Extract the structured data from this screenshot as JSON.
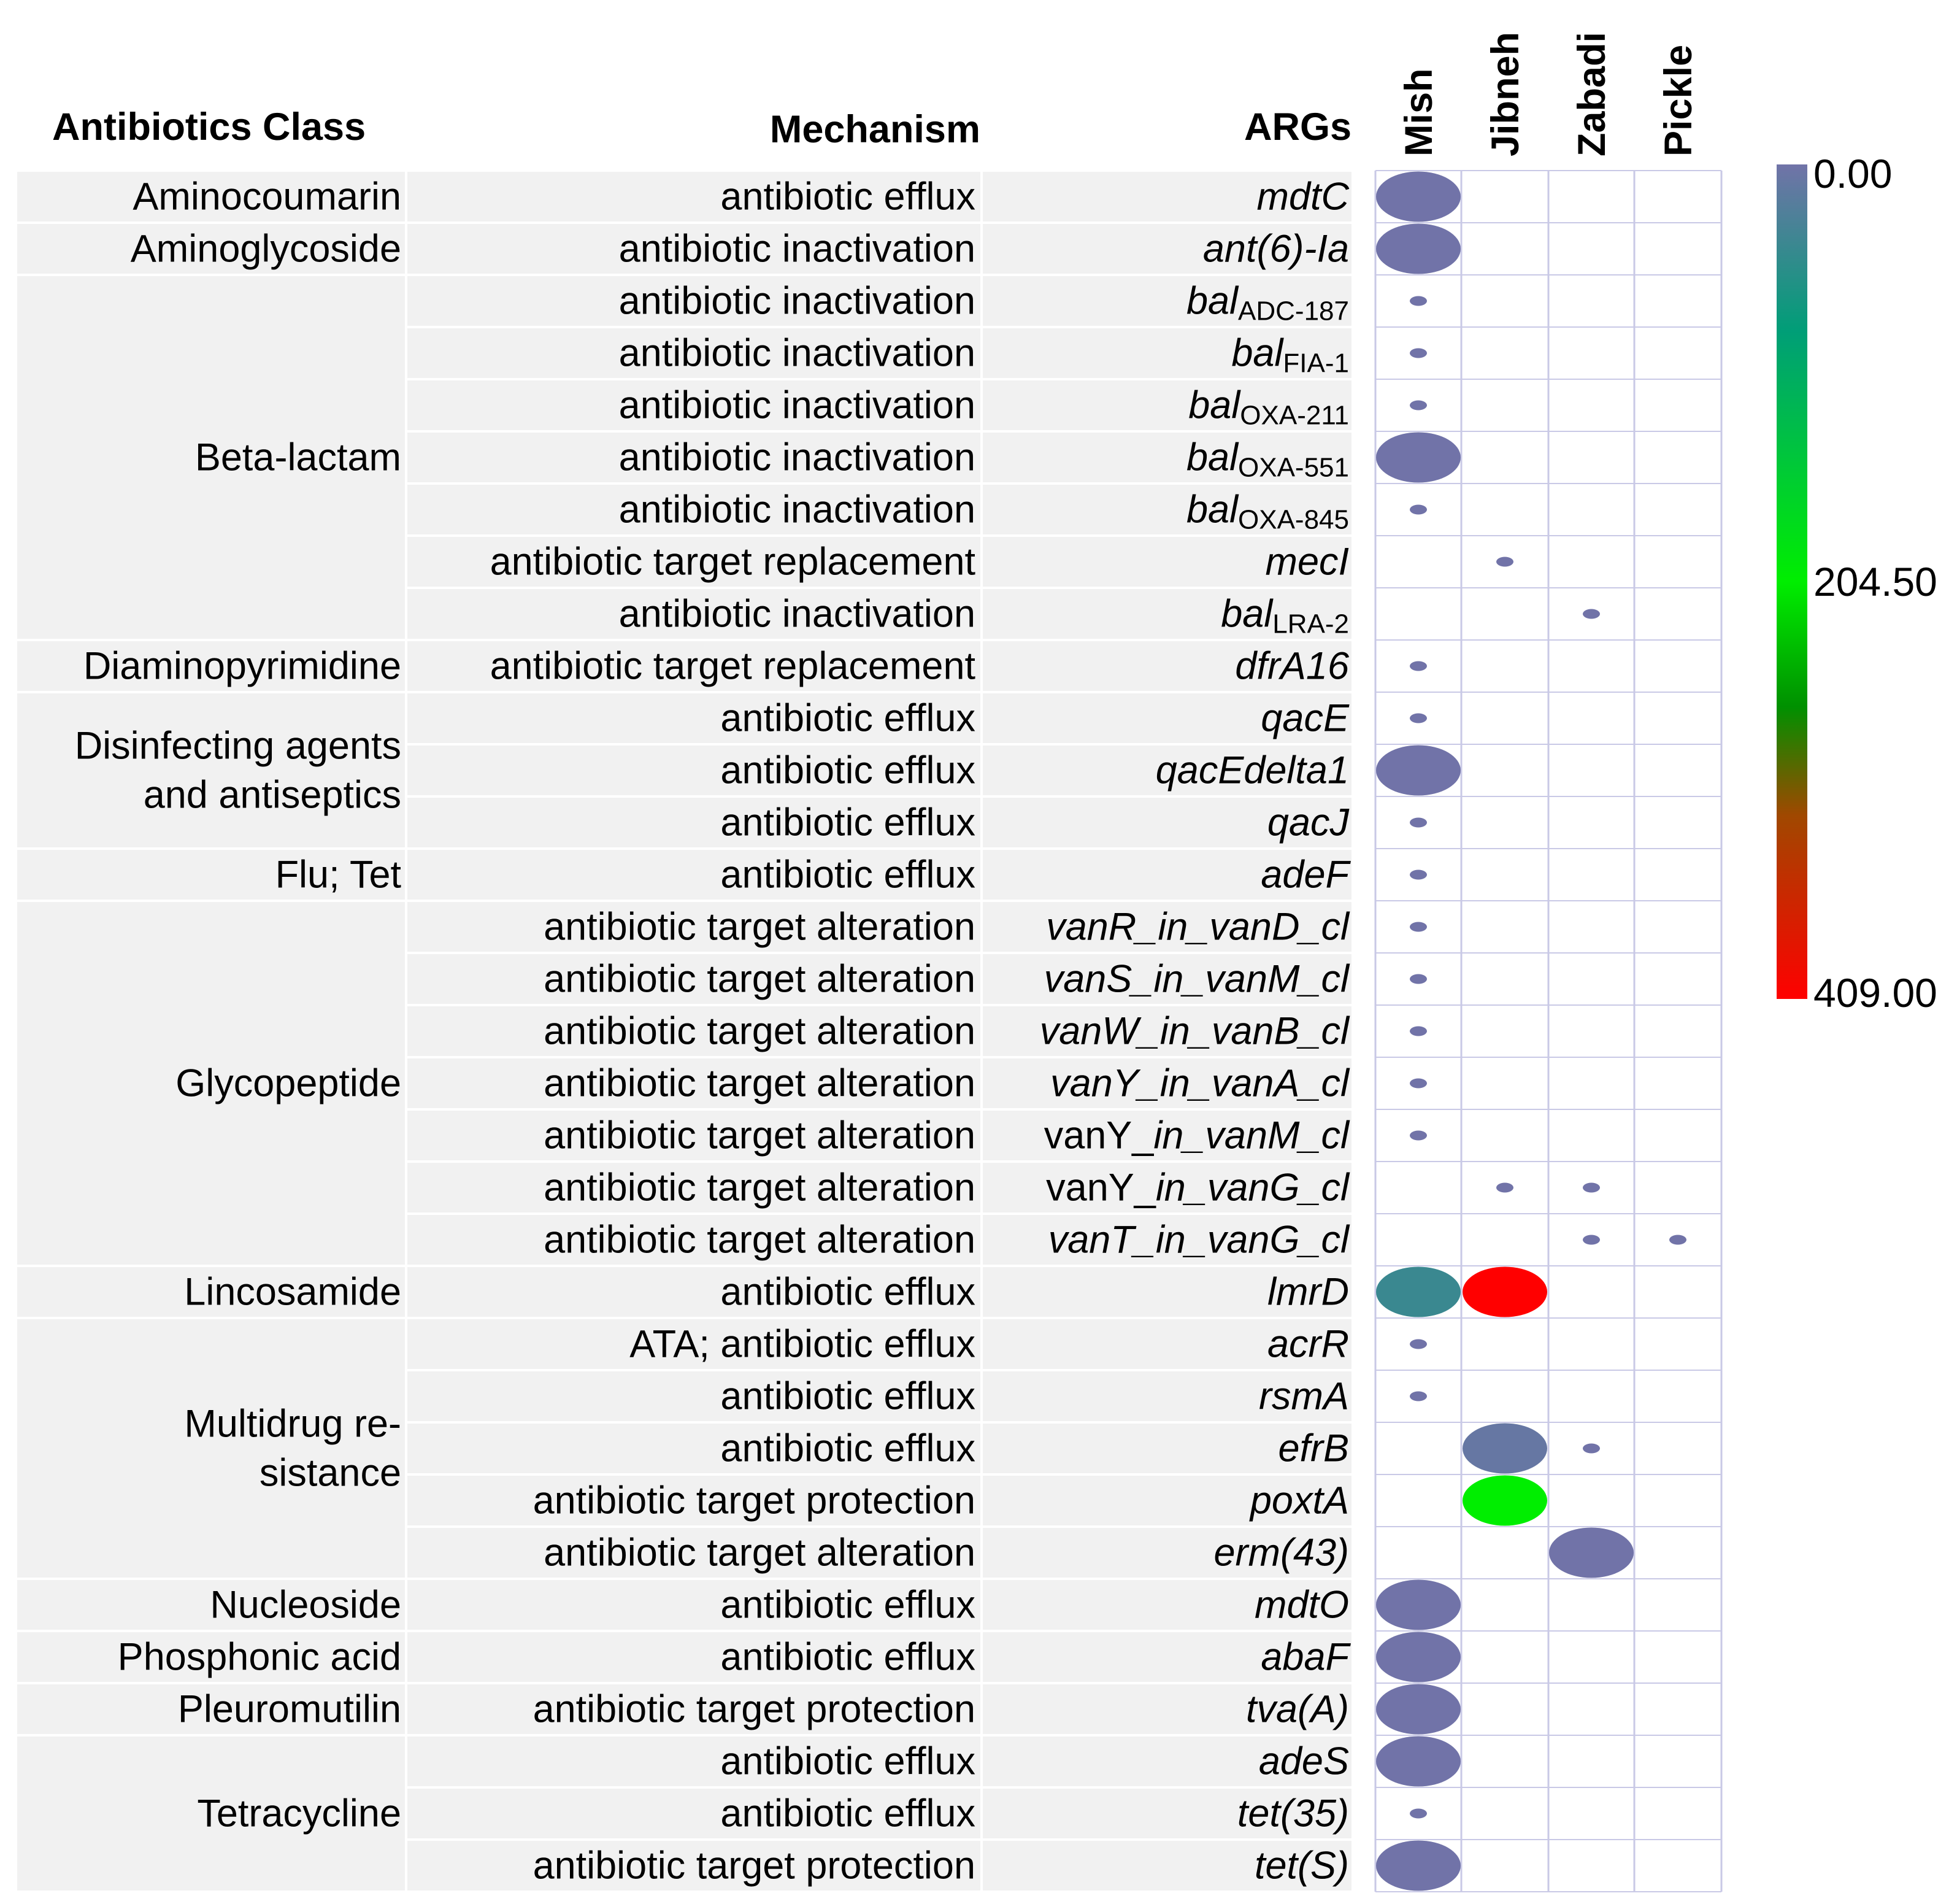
{
  "chart_data": {
    "type": "bubble-heatmap",
    "headers": {
      "class": "Antibiotics Class",
      "mechanism": "Mechanism",
      "args": "ARGs"
    },
    "samples": [
      "Mish",
      "Jibneh",
      "Zabadi",
      "Pickle"
    ],
    "class_groups": [
      {
        "label": [
          "Aminocoumarin"
        ],
        "start": 0,
        "count": 1
      },
      {
        "label": [
          "Aminoglycoside"
        ],
        "start": 1,
        "count": 1
      },
      {
        "label": [
          "Beta-lactam"
        ],
        "start": 2,
        "count": 7
      },
      {
        "label": [
          "Diaminopyrimidine"
        ],
        "start": 9,
        "count": 1
      },
      {
        "label": [
          "Disinfecting agents",
          "and antiseptics"
        ],
        "start": 10,
        "count": 3
      },
      {
        "label": [
          "Flu; Tet"
        ],
        "start": 13,
        "count": 1
      },
      {
        "label": [
          "Glycopeptide"
        ],
        "start": 14,
        "count": 7
      },
      {
        "label": [
          "Lincosamide"
        ],
        "start": 21,
        "count": 1
      },
      {
        "label": [
          "Multidrug re-",
          "sistance"
        ],
        "start": 22,
        "count": 5
      },
      {
        "label": [
          "Nucleoside"
        ],
        "start": 27,
        "count": 1
      },
      {
        "label": [
          "Phosphonic acid"
        ],
        "start": 28,
        "count": 1
      },
      {
        "label": [
          "Pleuromutilin"
        ],
        "start": 29,
        "count": 1
      },
      {
        "label": [
          "Tetracycline"
        ],
        "start": 30,
        "count": 3
      }
    ],
    "rows": [
      {
        "mechanism": "antibiotic efflux",
        "arg": [
          {
            "t": "mdtC",
            "i": true
          }
        ],
        "cells": [
          [
            0,
            1.0,
            0
          ]
        ]
      },
      {
        "mechanism": "antibiotic inactivation",
        "arg": [
          {
            "t": "ant(6)-Ia",
            "i": true
          }
        ],
        "cells": [
          [
            0,
            1.0,
            0
          ]
        ]
      },
      {
        "mechanism": "antibiotic inactivation",
        "arg": [
          {
            "t": "bal",
            "i": true
          },
          {
            "t": "ADC-187",
            "sub": true
          }
        ],
        "cells": [
          [
            0,
            0.2,
            0
          ]
        ]
      },
      {
        "mechanism": "antibiotic inactivation",
        "arg": [
          {
            "t": "bal",
            "i": true
          },
          {
            "t": "FIA-1",
            "sub": true
          }
        ],
        "cells": [
          [
            0,
            0.2,
            0
          ]
        ]
      },
      {
        "mechanism": "antibiotic inactivation",
        "arg": [
          {
            "t": "bal",
            "i": true
          },
          {
            "t": "OXA-211",
            "sub": true
          }
        ],
        "cells": [
          [
            0,
            0.2,
            0
          ]
        ]
      },
      {
        "mechanism": "antibiotic inactivation",
        "arg": [
          {
            "t": "bal",
            "i": true
          },
          {
            "t": "OXA-551",
            "sub": true
          }
        ],
        "cells": [
          [
            0,
            1.0,
            0
          ]
        ]
      },
      {
        "mechanism": "antibiotic inactivation",
        "arg": [
          {
            "t": "bal",
            "i": true
          },
          {
            "t": "OXA-845",
            "sub": true
          }
        ],
        "cells": [
          [
            0,
            0.2,
            0
          ]
        ]
      },
      {
        "mechanism": "antibiotic target replacement",
        "arg": [
          {
            "t": "mecI",
            "i": true
          }
        ],
        "cells": [
          [
            1,
            0.2,
            0
          ]
        ]
      },
      {
        "mechanism": "antibiotic inactivation",
        "arg": [
          {
            "t": "bal",
            "i": true
          },
          {
            "t": "LRA-2",
            "sub": true
          }
        ],
        "cells": [
          [
            2,
            0.2,
            0
          ]
        ]
      },
      {
        "mechanism": "antibiotic target replacement",
        "arg": [
          {
            "t": "dfrA16",
            "i": true
          }
        ],
        "cells": [
          [
            0,
            0.2,
            0
          ]
        ]
      },
      {
        "mechanism": "antibiotic efflux",
        "arg": [
          {
            "t": "qacE",
            "i": true
          }
        ],
        "cells": [
          [
            0,
            0.2,
            0
          ]
        ]
      },
      {
        "mechanism": "antibiotic efflux",
        "arg": [
          {
            "t": "qacEdelta1",
            "i": true
          }
        ],
        "cells": [
          [
            0,
            1.0,
            0
          ]
        ]
      },
      {
        "mechanism": "antibiotic efflux",
        "arg": [
          {
            "t": "qacJ",
            "i": true
          }
        ],
        "cells": [
          [
            0,
            0.2,
            0
          ]
        ]
      },
      {
        "mechanism": "antibiotic efflux",
        "arg": [
          {
            "t": "adeF",
            "i": true
          }
        ],
        "cells": [
          [
            0,
            0.2,
            0
          ]
        ]
      },
      {
        "mechanism": "antibiotic target alteration",
        "arg": [
          {
            "t": "vanR_in_vanD_cl",
            "i": true
          }
        ],
        "cells": [
          [
            0,
            0.2,
            0
          ]
        ]
      },
      {
        "mechanism": "antibiotic target alteration",
        "arg": [
          {
            "t": "vanS_in_vanM_cl",
            "i": true
          }
        ],
        "cells": [
          [
            0,
            0.2,
            0
          ]
        ]
      },
      {
        "mechanism": "antibiotic target alteration",
        "arg": [
          {
            "t": "vanW_in_vanB_cl",
            "i": true
          }
        ],
        "cells": [
          [
            0,
            0.2,
            0
          ]
        ]
      },
      {
        "mechanism": "antibiotic target alteration",
        "arg": [
          {
            "t": "vanY_in_vanA_cl",
            "i": true
          }
        ],
        "cells": [
          [
            0,
            0.2,
            0
          ]
        ]
      },
      {
        "mechanism": "antibiotic target alteration",
        "arg": [
          {
            "t": "vanY_",
            "i": false
          },
          {
            "t": "in_vanM_cl",
            "i": true
          }
        ],
        "cells": [
          [
            0,
            0.2,
            0
          ]
        ]
      },
      {
        "mechanism": "antibiotic target alteration",
        "arg": [
          {
            "t": "vanY_",
            "i": false
          },
          {
            "t": "in_vanG_cl",
            "i": true
          }
        ],
        "cells": [
          [
            1,
            0.2,
            0
          ],
          [
            2,
            0.2,
            0
          ]
        ]
      },
      {
        "mechanism": "antibiotic target alteration",
        "arg": [
          {
            "t": "vanT_in_vanG_cl",
            "i": true
          }
        ],
        "cells": [
          [
            2,
            0.2,
            0
          ],
          [
            3,
            0.2,
            0
          ]
        ]
      },
      {
        "mechanism": "antibiotic efflux",
        "arg": [
          {
            "t": "lmrD",
            "i": true
          }
        ],
        "cells": [
          [
            0,
            1.0,
            40
          ],
          [
            1,
            1.0,
            409
          ]
        ]
      },
      {
        "mechanism": "ATA; antibiotic efflux",
        "arg": [
          {
            "t": "acrR",
            "i": true
          }
        ],
        "cells": [
          [
            0,
            0.2,
            0
          ]
        ]
      },
      {
        "mechanism": "antibiotic efflux",
        "arg": [
          {
            "t": "rsmA",
            "i": true
          }
        ],
        "cells": [
          [
            0,
            0.2,
            0
          ]
        ]
      },
      {
        "mechanism": "antibiotic efflux",
        "arg": [
          {
            "t": "efrB",
            "i": true
          }
        ],
        "cells": [
          [
            1,
            1.0,
            8
          ],
          [
            2,
            0.2,
            0
          ]
        ]
      },
      {
        "mechanism": "antibiotic target protection",
        "arg": [
          {
            "t": "poxtA",
            "i": true
          }
        ],
        "cells": [
          [
            1,
            1.0,
            204
          ]
        ]
      },
      {
        "mechanism": "antibiotic target alteration",
        "arg": [
          {
            "t": "erm(43)",
            "i": true
          }
        ],
        "cells": [
          [
            2,
            1.0,
            0
          ]
        ]
      },
      {
        "mechanism": "antibiotic efflux",
        "arg": [
          {
            "t": "mdtO",
            "i": true
          }
        ],
        "cells": [
          [
            0,
            1.0,
            0
          ]
        ]
      },
      {
        "mechanism": "antibiotic efflux",
        "arg": [
          {
            "t": "abaF",
            "i": true
          }
        ],
        "cells": [
          [
            0,
            1.0,
            0
          ]
        ]
      },
      {
        "mechanism": "antibiotic target protection",
        "arg": [
          {
            "t": "tva(A)",
            "i": true
          }
        ],
        "cells": [
          [
            0,
            1.0,
            0
          ]
        ]
      },
      {
        "mechanism": "antibiotic efflux",
        "arg": [
          {
            "t": "adeS",
            "i": true
          }
        ],
        "cells": [
          [
            0,
            1.0,
            0
          ]
        ]
      },
      {
        "mechanism": "antibiotic efflux",
        "arg": [
          {
            "t": "tet(35)",
            "i": true
          }
        ],
        "cells": [
          [
            0,
            0.2,
            0
          ]
        ]
      },
      {
        "mechanism": "antibiotic target protection",
        "arg": [
          {
            "t": "tet(S)",
            "i": true
          }
        ],
        "cells": [
          [
            0,
            1.0,
            0
          ]
        ]
      }
    ],
    "color_scale": {
      "min": 0,
      "mid": 204.5,
      "max": 409,
      "labels": [
        "0.00",
        "204.50",
        "409.00"
      ],
      "stops": [
        {
          "v": 0,
          "color": "#7173a8"
        },
        {
          "v": 0.2,
          "color": "#009e77"
        },
        {
          "v": 0.5,
          "color": "#00ee00"
        },
        {
          "v": 0.65,
          "color": "#009000"
        },
        {
          "v": 0.78,
          "color": "#a04800"
        },
        {
          "v": 1.0,
          "color": "#ff0000"
        }
      ]
    },
    "colors": {
      "stripe": "#f1f1f1",
      "grid": "#c9c9e6",
      "text": "#000000"
    }
  }
}
